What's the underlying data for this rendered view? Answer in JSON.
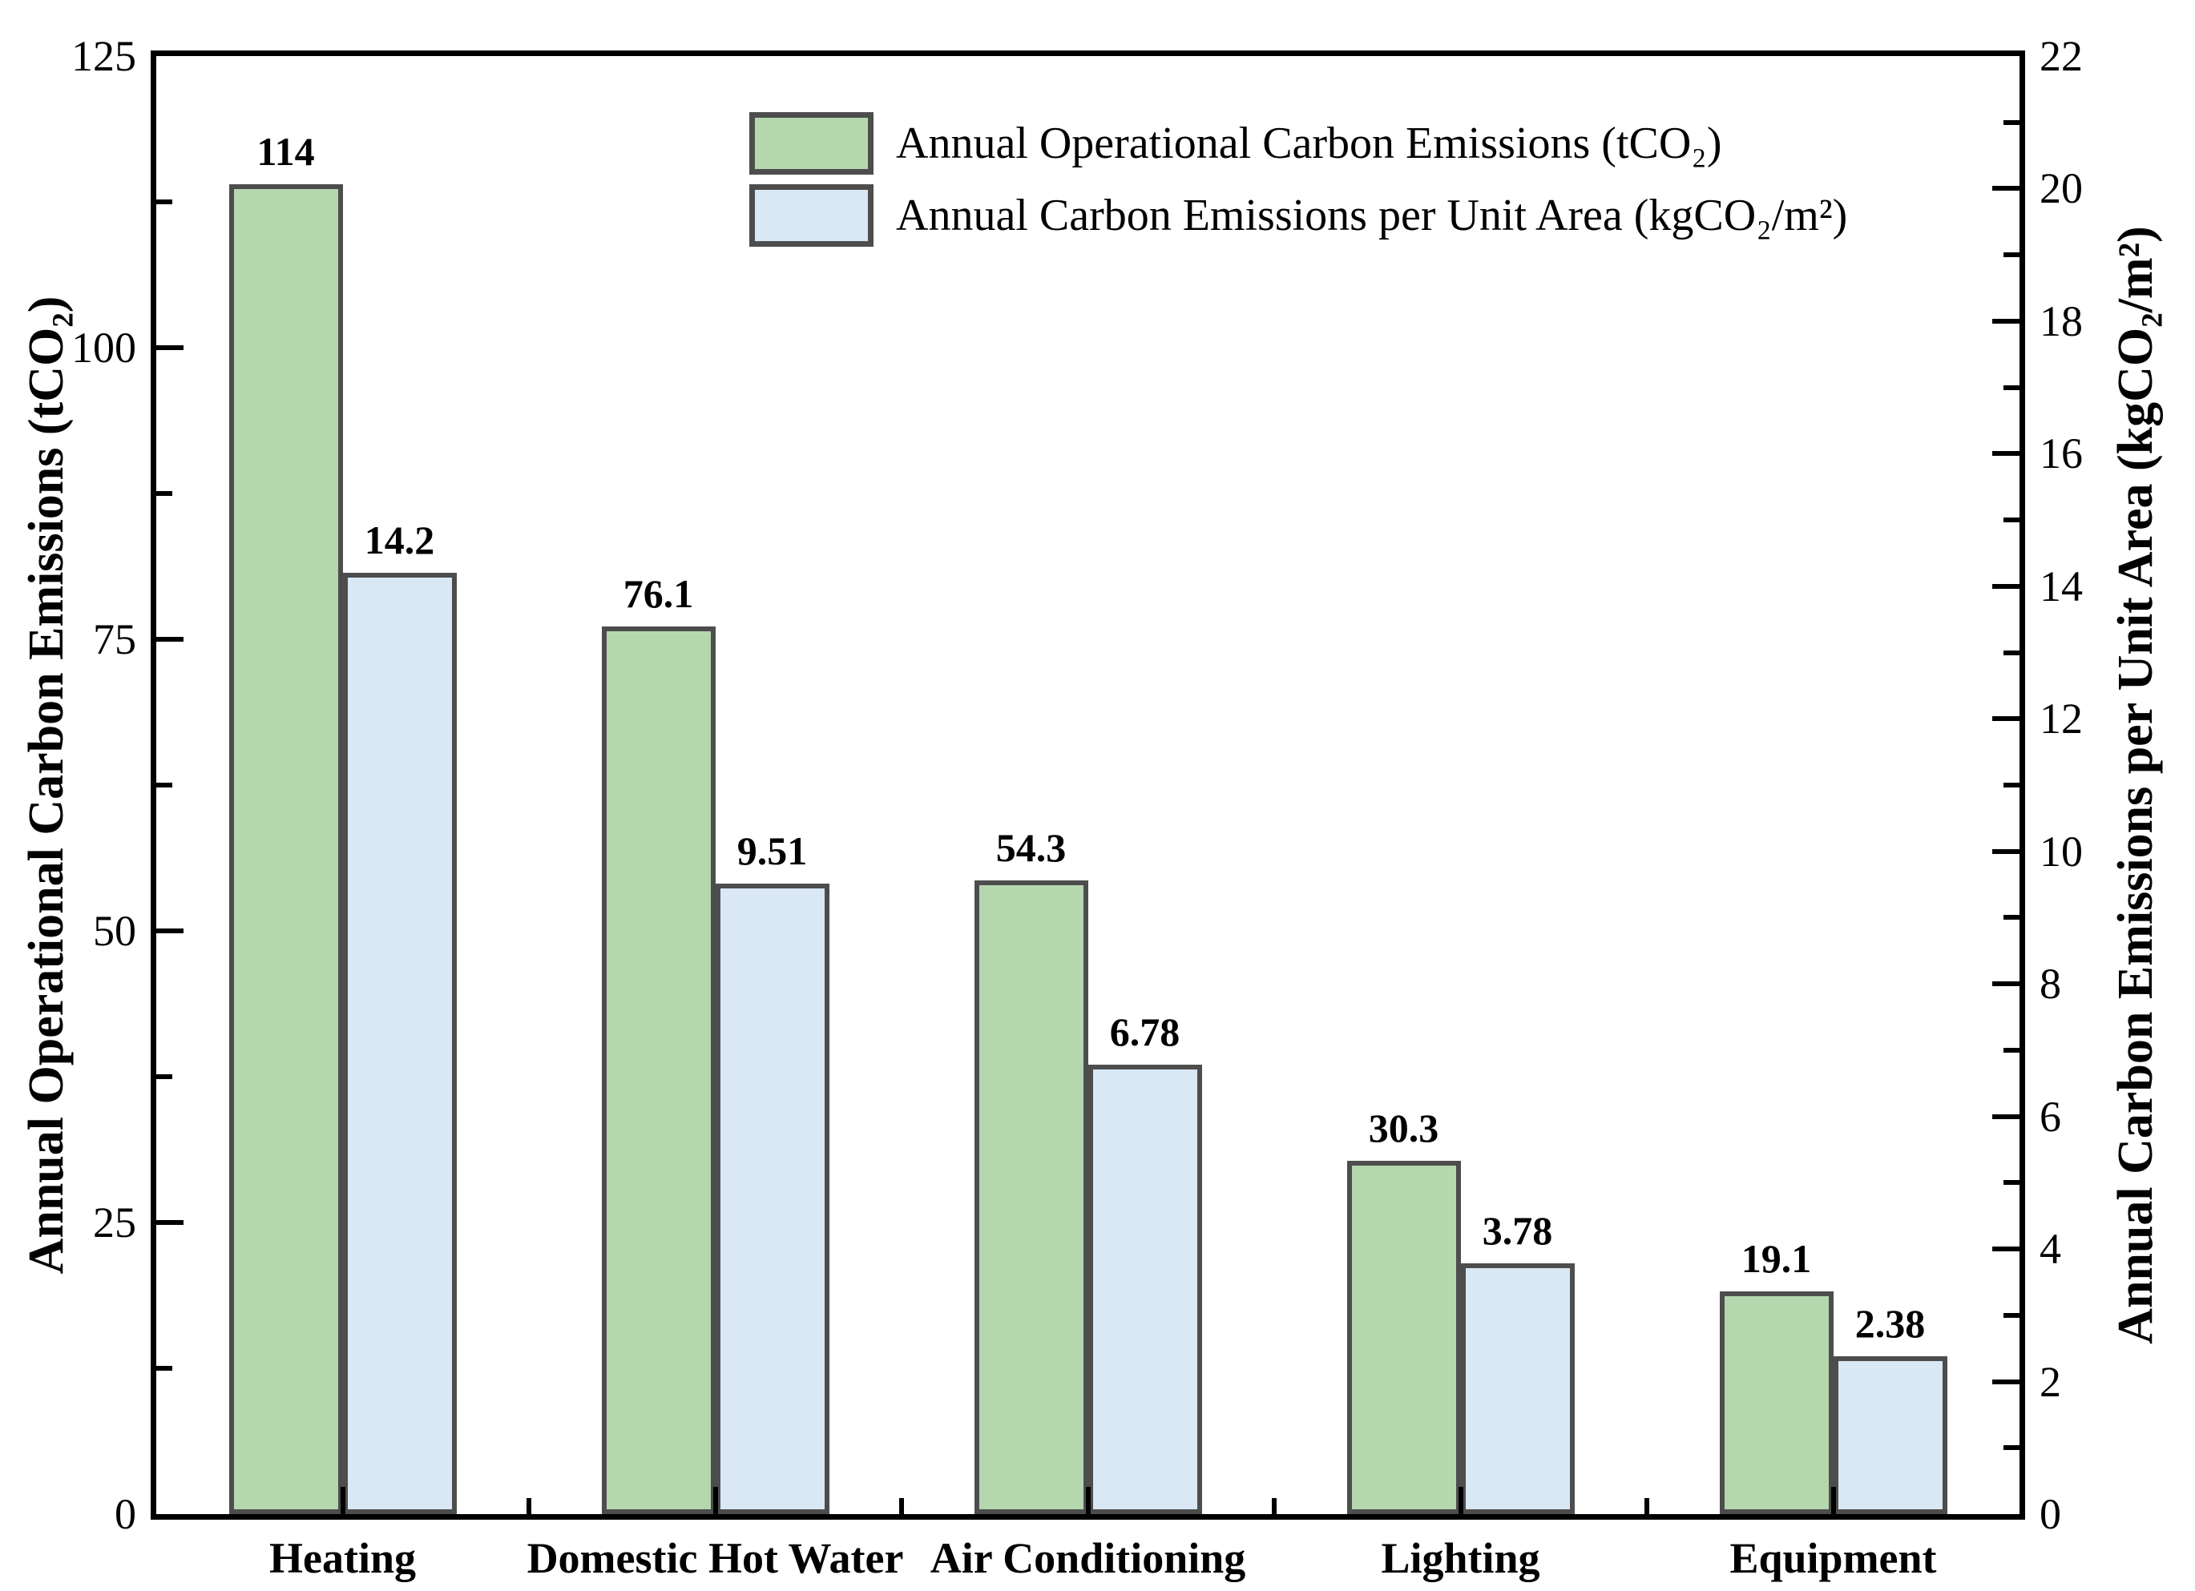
{
  "chart_data": {
    "type": "bar",
    "title": "",
    "categories": [
      "Heating",
      "Domestic Hot Water",
      "Air Conditioning",
      "Lighting",
      "Equipment"
    ],
    "series": [
      {
        "name": "Annual Operational Carbon Emissions (tCO₂)",
        "axis": "left",
        "color": "#b5d7ae",
        "values": [
          114,
          76.1,
          54.3,
          30.3,
          19.1
        ],
        "value_labels": [
          "114",
          "76.1",
          "54.3",
          "30.3",
          "19.1"
        ]
      },
      {
        "name": "Annual Carbon Emissions per Unit Area (kgCO₂/m²)",
        "axis": "right",
        "color": "#d9e8f4",
        "values": [
          14.2,
          9.51,
          6.78,
          3.78,
          2.38
        ],
        "value_labels": [
          "14.2",
          "9.51",
          "6.78",
          "3.78",
          "2.38"
        ]
      }
    ],
    "left_axis": {
      "label": "Annual Operational Carbon Emissions (tCO₂)",
      "min": 0,
      "max": 125,
      "major_step": 25,
      "minor_step": 12.5,
      "tick_labels": [
        "0",
        "25",
        "50",
        "75",
        "100",
        "125"
      ]
    },
    "right_axis": {
      "label": "Annual Carbon Emissions per Unit Area (kgCO₂/m²)",
      "min": 0,
      "max": 22,
      "major_step": 2,
      "minor_step": 1,
      "tick_labels": [
        "0",
        "2",
        "4",
        "6",
        "8",
        "10",
        "12",
        "14",
        "16",
        "18",
        "20",
        "22"
      ]
    },
    "legend": {
      "position": "top-center",
      "entries": [
        "Annual Operational Carbon Emissions (tCO₂)",
        "Annual Carbon Emissions per Unit Area (kgCO₂/m²)"
      ]
    },
    "grid": false,
    "bar_outline_color": "#4d4d4d",
    "axis_color": "#000000",
    "background_color": "#ffffff"
  }
}
